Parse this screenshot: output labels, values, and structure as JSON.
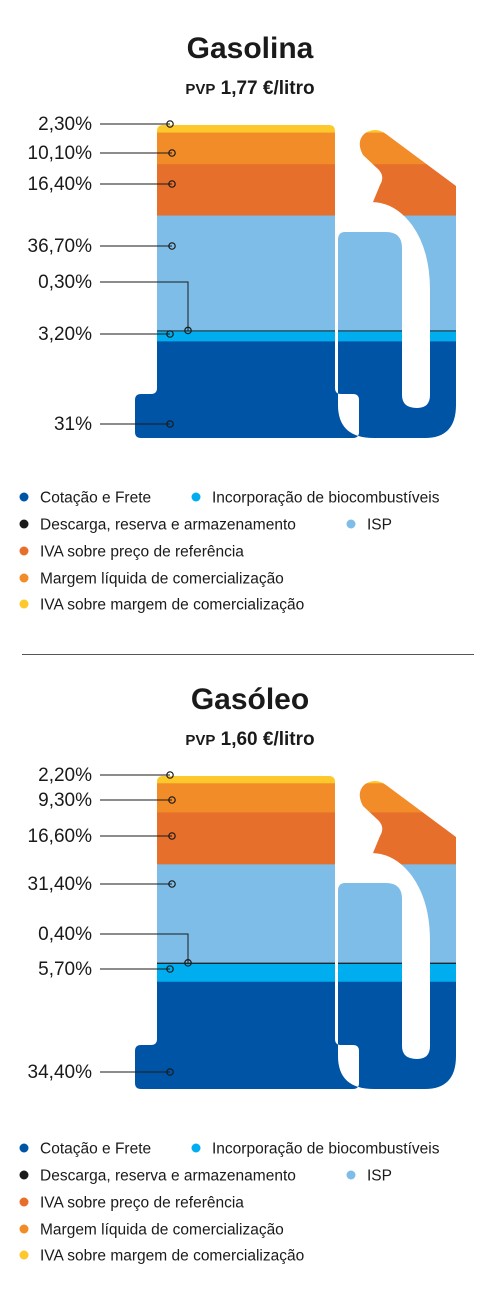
{
  "legend": [
    {
      "label": "Cotação e Frete",
      "color": "#0054a6"
    },
    {
      "label": "Incorporação de biocombustíveis",
      "color": "#00aeef"
    },
    {
      "label": "Descarga, reserva e armazenamento",
      "color": "#1a1a1a"
    },
    {
      "label": "ISP",
      "color": "#7dbde8"
    },
    {
      "label": "IVA sobre preço de referência",
      "color": "#e76f2c"
    },
    {
      "label": "Margem líquida de comercialização",
      "color": "#f28c28"
    },
    {
      "label": "IVA sobre margem de comercialização",
      "color": "#fcc82b"
    }
  ],
  "chart_data": [
    {
      "type": "stacked-bar",
      "title": "Gasolina",
      "subtitle_prefix": "PVP",
      "subtitle": "1,77 €/litro",
      "series": [
        {
          "name": "Cotação e Frete",
          "value": 31,
          "label": "31%"
        },
        {
          "name": "Incorporação de biocombustíveis",
          "value": 3.2,
          "label": "3,20%"
        },
        {
          "name": "Descarga, reserva e armazenamento",
          "value": 0.3,
          "label": "0,30%"
        },
        {
          "name": "ISP",
          "value": 36.7,
          "label": "36,70%"
        },
        {
          "name": "IVA sobre preço de referência",
          "value": 16.4,
          "label": "16,40%"
        },
        {
          "name": "Margem líquida de comercialização",
          "value": 10.1,
          "label": "10,10%"
        },
        {
          "name": "IVA sobre margem de comercialização",
          "value": 2.3,
          "label": "2,30%"
        }
      ]
    },
    {
      "type": "stacked-bar",
      "title": "Gasóleo",
      "subtitle_prefix": "PVP",
      "subtitle": "1,60 €/litro",
      "series": [
        {
          "name": "Cotação e Frete",
          "value": 34.4,
          "label": "34,40%"
        },
        {
          "name": "Incorporação de biocombustíveis",
          "value": 5.7,
          "label": "5,70%"
        },
        {
          "name": "Descarga, reserva e armazenamento",
          "value": 0.4,
          "label": "0,40%"
        },
        {
          "name": "ISP",
          "value": 31.4,
          "label": "31,40%"
        },
        {
          "name": "IVA sobre preço de referência",
          "value": 16.6,
          "label": "16,60%"
        },
        {
          "name": "Margem líquida de comercialização",
          "value": 9.3,
          "label": "9,30%"
        },
        {
          "name": "IVA sobre margem de comercialização",
          "value": 2.2,
          "label": "2,20%"
        }
      ]
    }
  ]
}
